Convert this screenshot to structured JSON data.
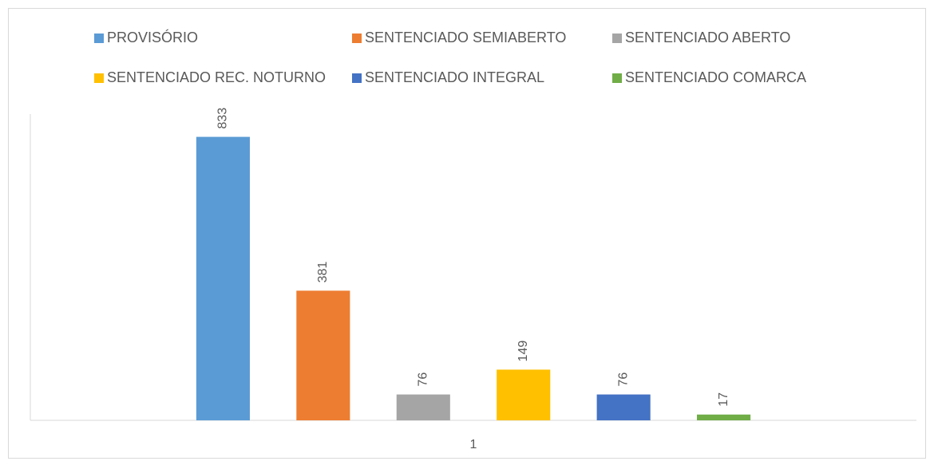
{
  "chart_data": {
    "type": "bar",
    "categories": [
      "1"
    ],
    "series": [
      {
        "name": "PROVISÓRIO",
        "color": "#5b9bd5",
        "values": [
          833
        ]
      },
      {
        "name": "SENTENCIADO SEMIABERTO",
        "color": "#ed7d31",
        "values": [
          381
        ]
      },
      {
        "name": "SENTENCIADO ABERTO",
        "color": "#a5a5a5",
        "values": [
          76
        ]
      },
      {
        "name": "SENTENCIADO REC. NOTURNO",
        "color": "#ffc000",
        "values": [
          149
        ]
      },
      {
        "name": "SENTENCIADO INTEGRAL",
        "color": "#4472c4",
        "values": [
          76
        ]
      },
      {
        "name": "SENTENCIADO COMARCA",
        "color": "#70ad47",
        "values": [
          17
        ]
      }
    ],
    "ylim": [
      0,
      900
    ],
    "legend": "top"
  }
}
